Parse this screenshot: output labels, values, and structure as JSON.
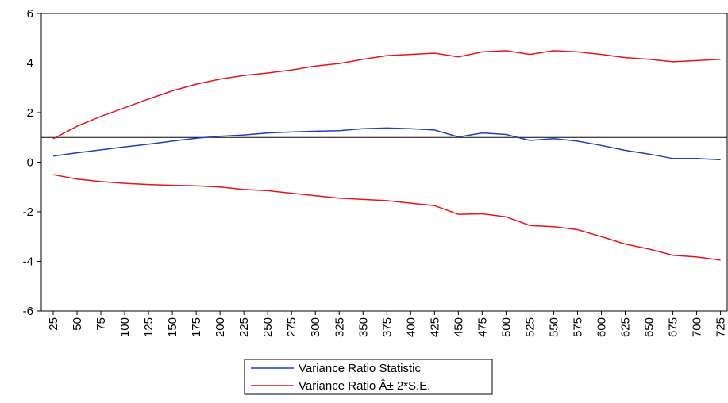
{
  "chart_data": {
    "type": "line",
    "x": [
      25,
      50,
      75,
      100,
      125,
      150,
      175,
      200,
      225,
      250,
      275,
      300,
      325,
      350,
      375,
      400,
      425,
      450,
      475,
      500,
      525,
      550,
      575,
      600,
      625,
      650,
      675,
      700,
      725
    ],
    "xlim": [
      12.5,
      732
    ],
    "xticks": [
      25,
      50,
      75,
      100,
      125,
      150,
      175,
      200,
      225,
      250,
      275,
      300,
      325,
      350,
      375,
      400,
      425,
      450,
      475,
      500,
      525,
      550,
      575,
      600,
      625,
      650,
      675,
      700,
      725
    ],
    "ylim": [
      -6,
      6
    ],
    "yticks": [
      -6,
      -4,
      -2,
      0,
      2,
      4,
      6
    ],
    "hline": 1,
    "series": [
      {
        "name": "Variance Ratio Statistic",
        "color": "#1f3fbf",
        "values": [
          0.25,
          0.38,
          0.5,
          0.62,
          0.73,
          0.85,
          0.97,
          1.05,
          1.1,
          1.18,
          1.22,
          1.25,
          1.27,
          1.35,
          1.38,
          1.35,
          1.3,
          1.02,
          1.18,
          1.12,
          0.88,
          0.95,
          0.85,
          0.68,
          0.48,
          0.33,
          0.15,
          0.15,
          0.1
        ]
      },
      {
        "name": "Variance Ratio Â± 2*S.E.",
        "color": "#e8141a",
        "values": [
          0.95,
          1.45,
          1.85,
          2.2,
          2.55,
          2.88,
          3.15,
          3.35,
          3.5,
          3.6,
          3.72,
          3.88,
          3.98,
          4.15,
          4.3,
          4.35,
          4.4,
          4.25,
          4.45,
          4.5,
          4.35,
          4.5,
          4.45,
          4.35,
          4.22,
          4.15,
          4.05,
          4.1,
          4.15
        ],
        "lower": [
          -0.5,
          -0.68,
          -0.78,
          -0.85,
          -0.9,
          -0.93,
          -0.95,
          -1.0,
          -1.1,
          -1.15,
          -1.25,
          -1.35,
          -1.45,
          -1.5,
          -1.55,
          -1.65,
          -1.75,
          -2.1,
          -2.08,
          -2.2,
          -2.55,
          -2.6,
          -2.72,
          -3.0,
          -3.3,
          -3.5,
          -3.75,
          -3.82,
          -3.95
        ]
      }
    ]
  }
}
